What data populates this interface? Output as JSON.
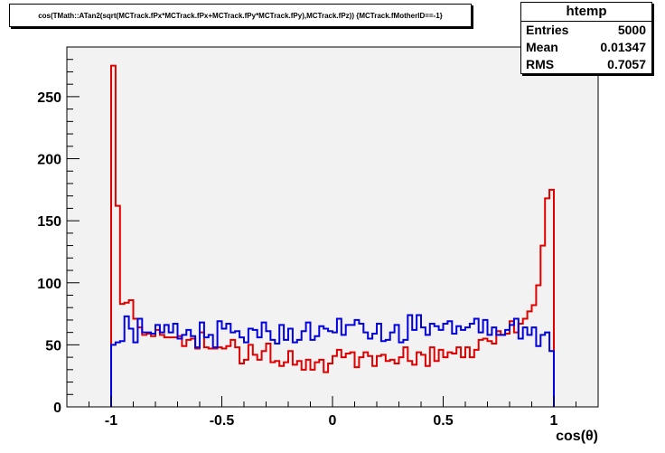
{
  "chart_data": {
    "type": "histogram",
    "title": "cos(TMath::ATan2(sqrt(MCTrack.fPx*MCTrack.fPx+MCTrack.fPy*MCTrack.fPy),MCTrack.fPz)) {MCTrack.fMotherID==-1}",
    "xlabel": "cos(θ)",
    "ylabel": "",
    "xlim": [
      -1.2,
      1.2
    ],
    "ylim": [
      0,
      290
    ],
    "x_ticks": [
      "-1",
      "-0.5",
      "0",
      "0.5",
      "1"
    ],
    "y_ticks": [
      "0",
      "50",
      "100",
      "150",
      "200",
      "250"
    ],
    "bins": 100,
    "bin_range": [
      -1,
      1
    ],
    "frame_fill": "#f2f2f2",
    "series": [
      {
        "color": "#e00000",
        "values": [
          275,
          162,
          83,
          84,
          86,
          71,
          64,
          58,
          59,
          57,
          62,
          58,
          56,
          56,
          56,
          57,
          49,
          54,
          55,
          47,
          60,
          48,
          47,
          47,
          48,
          47,
          49,
          54,
          48,
          35,
          38,
          50,
          42,
          38,
          45,
          51,
          36,
          37,
          33,
          36,
          45,
          34,
          37,
          30,
          38,
          30,
          36,
          38,
          28,
          35,
          41,
          46,
          40,
          43,
          44,
          32,
          40,
          44,
          41,
          33,
          41,
          42,
          37,
          38,
          35,
          40,
          48,
          37,
          34,
          44,
          42,
          33,
          48,
          37,
          46,
          40,
          44,
          43,
          48,
          40,
          48,
          40,
          46,
          54,
          55,
          53,
          51,
          61,
          58,
          59,
          69,
          60,
          67,
          71,
          77,
          82,
          98,
          130,
          168,
          175
        ]
      },
      {
        "color": "#0000e0",
        "values": [
          50,
          52,
          53,
          73,
          63,
          52,
          71,
          60,
          60,
          59,
          66,
          60,
          66,
          60,
          67,
          55,
          58,
          62,
          57,
          48,
          68,
          56,
          58,
          48,
          69,
          63,
          67,
          60,
          61,
          56,
          52,
          63,
          62,
          56,
          68,
          61,
          54,
          51,
          66,
          54,
          63,
          52,
          54,
          61,
          68,
          54,
          57,
          65,
          63,
          61,
          60,
          71,
          58,
          66,
          66,
          70,
          67,
          60,
          55,
          59,
          67,
          53,
          54,
          60,
          66,
          52,
          54,
          74,
          62,
          74,
          64,
          58,
          67,
          65,
          62,
          67,
          69,
          59,
          65,
          62,
          64,
          67,
          71,
          60,
          70,
          58,
          64,
          58,
          58,
          62,
          66,
          71,
          55,
          64,
          58,
          64,
          49,
          58,
          60,
          45
        ]
      }
    ]
  },
  "stats": {
    "name": "htemp",
    "rows": [
      {
        "label": "Entries",
        "value": "5000"
      },
      {
        "label": "Mean",
        "value": "0.01347"
      },
      {
        "label": "RMS",
        "value": "0.7057"
      }
    ]
  }
}
